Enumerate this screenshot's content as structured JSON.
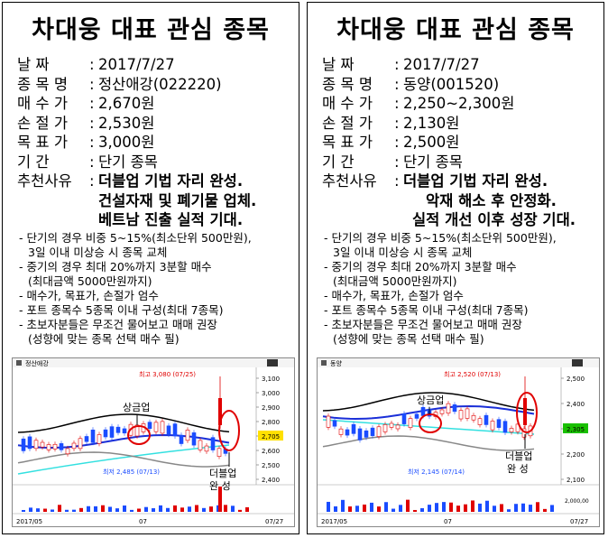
{
  "cards": [
    {
      "title": "차대웅 대표 관심 종목",
      "fields": [
        {
          "label": "날     짜",
          "value": "2017/7/27"
        },
        {
          "label": "종 목 명",
          "value": "정산애강(022220)"
        },
        {
          "label": "매 수 가",
          "value": "2,670원"
        },
        {
          "label": "손 절 가",
          "value": "2,530원"
        },
        {
          "label": "목 표 가",
          "value": "3,000원"
        },
        {
          "label": "기     간",
          "value": "단기 종목"
        }
      ],
      "reason_label": "추천사유",
      "reason_lines": [
        "더블업 기법 자리 완성.",
        "건설자재 및 폐기물 업체.",
        "베트남 진출 실적 기대."
      ],
      "notes": [
        "- 단기의 경우 비중 5~15%(최소단위  500만원),",
        "  3일 이내 미상승 시 종목 교체",
        "- 중기의 경우 최대 20%까지 3분할 매수",
        "  (최대금액  5000만원까지)",
        "- 매수가, 목표가, 손절가 엄수",
        "- 포트 종목수 5종목 이내 구성(최대 7종목)",
        "- 초보자분들은 무조건 물어보고 매매 권장",
        "  (성향에 맞는 종목 선택 매수 필)"
      ],
      "chart": {
        "stock_label": "정산애강",
        "high_label": "최고 3,080 (07/25)",
        "low_label": "최저 2,485 (07/13)",
        "yticks": [
          "3,100",
          "3,000",
          "2,900",
          "2,800",
          "2,705",
          "2,600",
          "2,500",
          "2,400"
        ],
        "current_price": "2,705",
        "annotation_top": "상금업",
        "annotation_bottom_1": "더블업",
        "annotation_bottom_2": "완  성",
        "x_labels": [
          "2017/05",
          "07",
          "07/27"
        ]
      }
    },
    {
      "title": "차대웅 대표 관심 종목",
      "fields": [
        {
          "label": "날     짜",
          "value": "2017/7/27"
        },
        {
          "label": "종 목 명",
          "value": "동양(001520)"
        },
        {
          "label": "매 수 가",
          "value": "2,250~2,300원"
        },
        {
          "label": "손 절 가",
          "value": "2,130원"
        },
        {
          "label": "목 표 가",
          "value": "2,500원"
        },
        {
          "label": "기     간",
          "value": "단기 종목"
        }
      ],
      "reason_label": "추천사유",
      "reason_lines": [
        "더블업 기법 자리 완성.",
        "악재 해소 후 안정화.",
        "실적 개선 이후 성장 기대."
      ],
      "notes": [
        "- 단기의 경우 비중 5~15%(최소단위  500만원),",
        "  3일 이내 미상승 시 종목 교체",
        "- 중기의 경우 최대 20%까지 3분할 매수",
        "  (최대금액  5000만원까지)",
        "- 매수가, 목표가, 손절가 엄수",
        "- 포트 종목수 5종목 이내 구성(최대 7종목)",
        "- 초보자분들은 무조건 물어보고 매매 권장",
        "  (성향에 맞는 종목 선택 매수 필)"
      ],
      "chart": {
        "stock_label": "동양",
        "high_label": "최고 2,520 (07/13)",
        "low_label": "최저 2,145 (07/14)",
        "yticks": [
          "2,500",
          "2,400",
          "2,305",
          "2,200",
          "2,100"
        ],
        "current_price": "2,305",
        "annotation_top": "상금업",
        "annotation_bottom_1": "더블업",
        "annotation_bottom_2": "완  성",
        "x_labels": [
          "2017/05",
          "07",
          "07/27"
        ],
        "volume_label": "2,000,00"
      }
    }
  ],
  "colors": {
    "up": "#e00000",
    "down": "#1a4cff",
    "ma_black": "#000000",
    "ma_blue": "#1a2fd8",
    "ma_cyan": "#33e0e0",
    "ma_gray": "#888888",
    "circle": "#e00000",
    "price_tag": "#ffe000",
    "price_tag_green": "#19c000"
  }
}
